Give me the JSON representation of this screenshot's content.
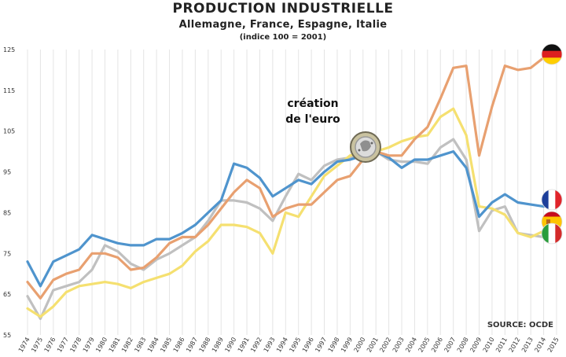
{
  "chart_data": {
    "type": "line",
    "title": "PRODUCTION INDUSTRIELLE",
    "subtitle": "Allemagne, France, Espagne, Italie",
    "note": "(indice 100 = 2001)",
    "source": "SOURCE: OCDE",
    "annotation": {
      "line1": "création",
      "line2": "de l'euro",
      "year": 2001,
      "value": 100
    },
    "xlabel": "",
    "ylabel": "",
    "ylim": [
      55,
      125
    ],
    "yticks": [
      55,
      65,
      75,
      85,
      95,
      105,
      115,
      125
    ],
    "grid": "vertical",
    "x": [
      1974,
      1975,
      1976,
      1977,
      1978,
      1979,
      1980,
      1981,
      1982,
      1983,
      1984,
      1985,
      1986,
      1987,
      1988,
      1989,
      1990,
      1991,
      1992,
      1993,
      1994,
      1995,
      1996,
      1997,
      1998,
      1999,
      2000,
      2001,
      2002,
      2003,
      2004,
      2005,
      2006,
      2007,
      2008,
      2009,
      2010,
      2011,
      2012,
      2013,
      2014,
      2015
    ],
    "series": [
      {
        "name": "Allemagne",
        "color": "#e8a070",
        "values": [
          68,
          64,
          68.5,
          70,
          71,
          75,
          75,
          74,
          71,
          71.5,
          74,
          77.5,
          79,
          79,
          82,
          86,
          90,
          93,
          91,
          84,
          86,
          87,
          87,
          90,
          93,
          94,
          98,
          100,
          99,
          99,
          103,
          106,
          113,
          120.5,
          121,
          99,
          111,
          121,
          120,
          120.5,
          123,
          null
        ]
      },
      {
        "name": "France",
        "color": "#4f94cd",
        "values": [
          73,
          67,
          73,
          74.5,
          76,
          79.5,
          78.5,
          77.5,
          77,
          77,
          78.5,
          78.5,
          80,
          82,
          85,
          88,
          97,
          96,
          93.5,
          89,
          91,
          93,
          92,
          95,
          97.5,
          98,
          99,
          100,
          98.5,
          96,
          98,
          98,
          99,
          100,
          96,
          84,
          87.5,
          89.5,
          87.5,
          87,
          86.5,
          null
        ]
      },
      {
        "name": "Espagne",
        "color": "#c0c0c0",
        "values": [
          64.5,
          59,
          66,
          67,
          68,
          71,
          77,
          75.5,
          72.5,
          71,
          73.5,
          75,
          77,
          79,
          83,
          88,
          88,
          87.5,
          86,
          83,
          89,
          94.5,
          93,
          96.5,
          98,
          98.5,
          99,
          100,
          98,
          97.5,
          97.5,
          97,
          101,
          103,
          98,
          80.5,
          85.5,
          86.5,
          80,
          79.5,
          79,
          null
        ]
      },
      {
        "name": "Italie",
        "color": "#f5e070",
        "values": [
          61.5,
          59.5,
          62,
          65.5,
          67,
          67.5,
          68,
          67.5,
          66.5,
          68,
          69,
          70,
          72,
          75.5,
          78,
          82,
          82,
          81.5,
          80,
          75,
          85,
          84,
          89,
          94,
          96.5,
          99,
          100,
          100,
          101,
          102.5,
          103.5,
          104,
          108.5,
          110.5,
          104,
          86.5,
          86,
          84.5,
          80,
          79,
          80.5,
          null
        ]
      }
    ],
    "flags": [
      "germany-flag-icon",
      "france-flag-icon",
      "spain-flag-icon",
      "italy-flag-icon"
    ]
  }
}
